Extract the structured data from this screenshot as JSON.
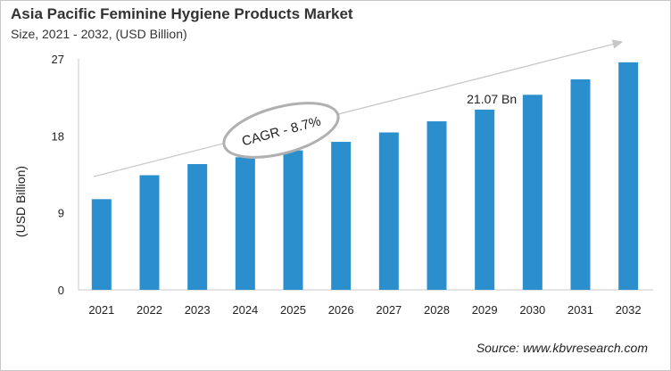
{
  "chart_data": {
    "type": "bar",
    "title": "Asia Pacific Feminine Hygiene Products  Market",
    "subtitle": "Size, 2021 - 2032, (USD Billion)",
    "xlabel": "",
    "ylabel": "(USD Billion)",
    "categories": [
      "2021",
      "2022",
      "2023",
      "2024",
      "2025",
      "2026",
      "2027",
      "2028",
      "2029",
      "2030",
      "2031",
      "2032"
    ],
    "values": [
      10.6,
      13.4,
      14.7,
      15.5,
      16.3,
      17.3,
      18.4,
      19.7,
      21.07,
      22.8,
      24.6,
      26.6
    ],
    "ylim": [
      0,
      27
    ],
    "yticks": [
      0,
      9,
      18,
      27
    ],
    "grid": false,
    "bar_color": "#2b8fce",
    "annotations": {
      "cagr": "CAGR - 8.7%",
      "value_label": "21.07 Bn",
      "value_label_year": "2029"
    },
    "source": "Source: www.kbvresearch.com"
  }
}
